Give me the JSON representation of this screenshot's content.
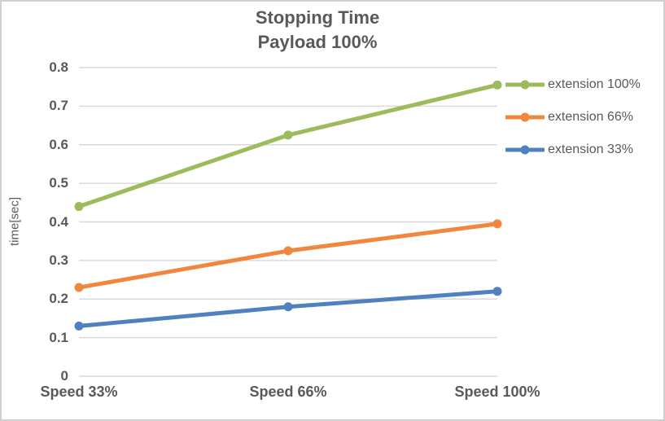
{
  "title": {
    "line1": "Stopping Time",
    "line2": "Payload 100%"
  },
  "chart_data": {
    "type": "line",
    "title": "Stopping Time",
    "subtitle": "Payload 100%",
    "categories": [
      "Speed 33%",
      "Speed 66%",
      "Speed 100%"
    ],
    "series": [
      {
        "name": "extension 100%",
        "color": "#9CBB5A",
        "values": [
          0.44,
          0.625,
          0.755
        ]
      },
      {
        "name": "extension 66%",
        "color": "#F0873C",
        "values": [
          0.23,
          0.325,
          0.395
        ]
      },
      {
        "name": "extension 33%",
        "color": "#4E81BD",
        "values": [
          0.13,
          0.18,
          0.22
        ]
      }
    ],
    "xlabel": "",
    "ylabel": "time[sec]",
    "ylim": [
      0,
      0.8
    ],
    "yticks": [
      0,
      0.1,
      0.2,
      0.3,
      0.4,
      0.5,
      0.6,
      0.7,
      0.8
    ],
    "ytick_labels": [
      "0",
      "0.1",
      "0.2",
      "0.3",
      "0.4",
      "0.5",
      "0.6",
      "0.7",
      "0.8"
    ],
    "grid": true,
    "legend_position": "right"
  },
  "style": {
    "text_color": "#595959",
    "grid_color": "#D9D9D9",
    "border_color": "#CFCFCF",
    "background": "#FFFFFF"
  }
}
